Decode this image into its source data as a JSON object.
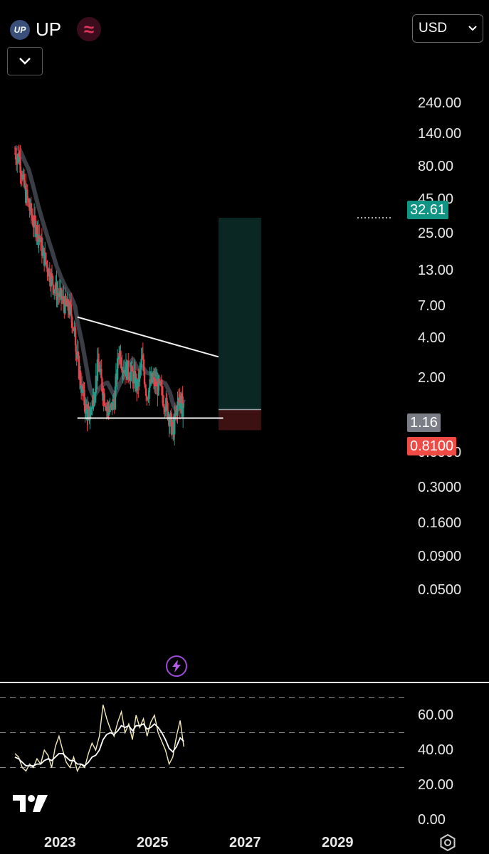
{
  "header": {
    "logo_text": "UP",
    "symbol": "UP",
    "wave_icon": "≈",
    "currency": "USD"
  },
  "chart_data": [
    {
      "type": "line",
      "scale": "log",
      "y_ticks": [
        "240.00",
        "140.00",
        "80.00",
        "45.00",
        "25.00",
        "13.00",
        "7.00",
        "4.00",
        "2.00",
        "0.5500",
        "0.3000",
        "0.1600",
        "0.0900",
        "0.0500"
      ],
      "x_ticks": [
        "2023",
        "2025",
        "2027",
        "2029"
      ],
      "price_tags": {
        "target": "32.61",
        "current": "1.16",
        "stop": "0.8100"
      },
      "trendlines": [
        {
          "name": "descending-resistance",
          "from": [
            2023.35,
            5.8
          ],
          "to": [
            2026.4,
            2.9
          ]
        },
        {
          "name": "horizontal-support",
          "from": [
            2023.35,
            1.0
          ],
          "to": [
            2026.5,
            1.0
          ]
        }
      ],
      "position": {
        "entry": 1.16,
        "target": 32.61,
        "stop": 0.81
      },
      "price": [
        [
          2022.0,
          100
        ],
        [
          2022.1,
          92
        ],
        [
          2022.2,
          55
        ],
        [
          2022.3,
          40
        ],
        [
          2022.4,
          30
        ],
        [
          2022.5,
          26
        ],
        [
          2022.6,
          18
        ],
        [
          2022.7,
          14
        ],
        [
          2022.8,
          11
        ],
        [
          2022.9,
          9
        ],
        [
          2023.0,
          8
        ],
        [
          2023.1,
          7
        ],
        [
          2023.2,
          6.5
        ],
        [
          2023.3,
          4.2
        ],
        [
          2023.35,
          2.8
        ],
        [
          2023.45,
          1.6
        ],
        [
          2023.55,
          1.1
        ],
        [
          2023.62,
          1.05
        ],
        [
          2023.7,
          1.5
        ],
        [
          2023.8,
          2.6
        ],
        [
          2023.9,
          1.6
        ],
        [
          2024.0,
          1.2
        ],
        [
          2024.05,
          1.1
        ],
        [
          2024.15,
          1.4
        ],
        [
          2024.25,
          3.3
        ],
        [
          2024.35,
          2.4
        ],
        [
          2024.45,
          2.3
        ],
        [
          2024.55,
          2.1
        ],
        [
          2024.65,
          1.7
        ],
        [
          2024.75,
          2.8
        ],
        [
          2024.85,
          1.5
        ],
        [
          2024.95,
          1.9
        ],
        [
          2025.05,
          1.8
        ],
        [
          2025.15,
          1.6
        ],
        [
          2025.25,
          1.3
        ],
        [
          2025.35,
          1.0
        ],
        [
          2025.42,
          0.78
        ],
        [
          2025.48,
          1.1
        ],
        [
          2025.55,
          1.4
        ],
        [
          2025.6,
          1.3
        ],
        [
          2025.65,
          1.16
        ]
      ]
    },
    {
      "type": "line",
      "name": "RSI",
      "y_ticks": [
        "60.00",
        "40.00",
        "20.00",
        "0.00"
      ],
      "bands": [
        70,
        50,
        30
      ],
      "series": [
        {
          "values": [
            38,
            36,
            30,
            28,
            32,
            30,
            35,
            32,
            40,
            37,
            30,
            42,
            48,
            40,
            33,
            30,
            36,
            28,
            32,
            30,
            38,
            44,
            40,
            48,
            66,
            58,
            52,
            48,
            56,
            62,
            50,
            55,
            46,
            60,
            53,
            58,
            48,
            56,
            60,
            50,
            45,
            40,
            32,
            36,
            48,
            57,
            42
          ],
          "x_range": [
            2022.0,
            2025.65
          ]
        },
        {
          "values": [
            36,
            35,
            33,
            31,
            31,
            31,
            32,
            32,
            34,
            35,
            34,
            36,
            38,
            38,
            36,
            34,
            34,
            32,
            32,
            31,
            33,
            36,
            37,
            40,
            46,
            49,
            50,
            49,
            51,
            54,
            53,
            54,
            51,
            54,
            54,
            55,
            52,
            53,
            55,
            53,
            50,
            46,
            41,
            39,
            42,
            47,
            45
          ],
          "x_range": [
            2022.0,
            2025.65
          ]
        }
      ]
    }
  ]
}
